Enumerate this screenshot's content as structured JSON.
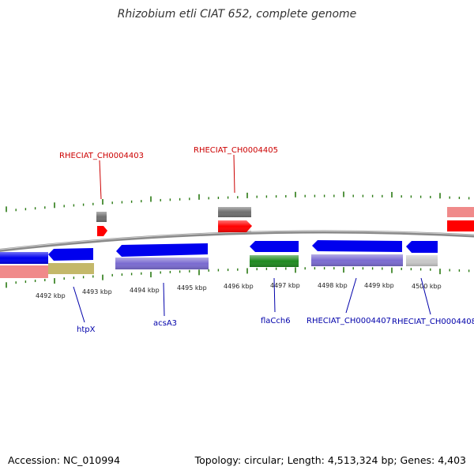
{
  "title": "Rhizobium etli CIAT 652, complete genome",
  "footer": {
    "accession": "Accession: NC_010994",
    "summary": "Topology: circular; Length: 4,513,324 bp; Genes: 4,403"
  },
  "colors": {
    "backbone": "#8a8a8a",
    "tick": "#2a7a13",
    "forward_label": "#cc0000",
    "reverse_label": "#0000aa",
    "cds_forward": "#ff0000",
    "gene_forward": "#707070",
    "cds_reverse": "#0000ee",
    "gene_reverse": "#7a6bd0",
    "trna": "#208a20",
    "pseudo": "#c8c8c8",
    "misc_pink": "#f08a8a",
    "misc_olive": "#c4b86a"
  },
  "axis": {
    "ticks": [
      {
        "label": "4492 kbp"
      },
      {
        "label": "4493 kbp"
      },
      {
        "label": "4494 kbp"
      },
      {
        "label": "4495 kbp"
      },
      {
        "label": "4496 kbp"
      },
      {
        "label": "4497 kbp"
      },
      {
        "label": "4498 kbp"
      },
      {
        "label": "4499 kbp"
      },
      {
        "label": "4500 kbp"
      }
    ]
  },
  "labels": {
    "forward": [
      "RHECIAT_CH0004403",
      "RHECIAT_CH0004405"
    ],
    "reverse": [
      "htpX",
      "acsA3",
      "flaCch6",
      "RHECIAT_CH0004407",
      "RHECIAT_CH0004408"
    ]
  }
}
